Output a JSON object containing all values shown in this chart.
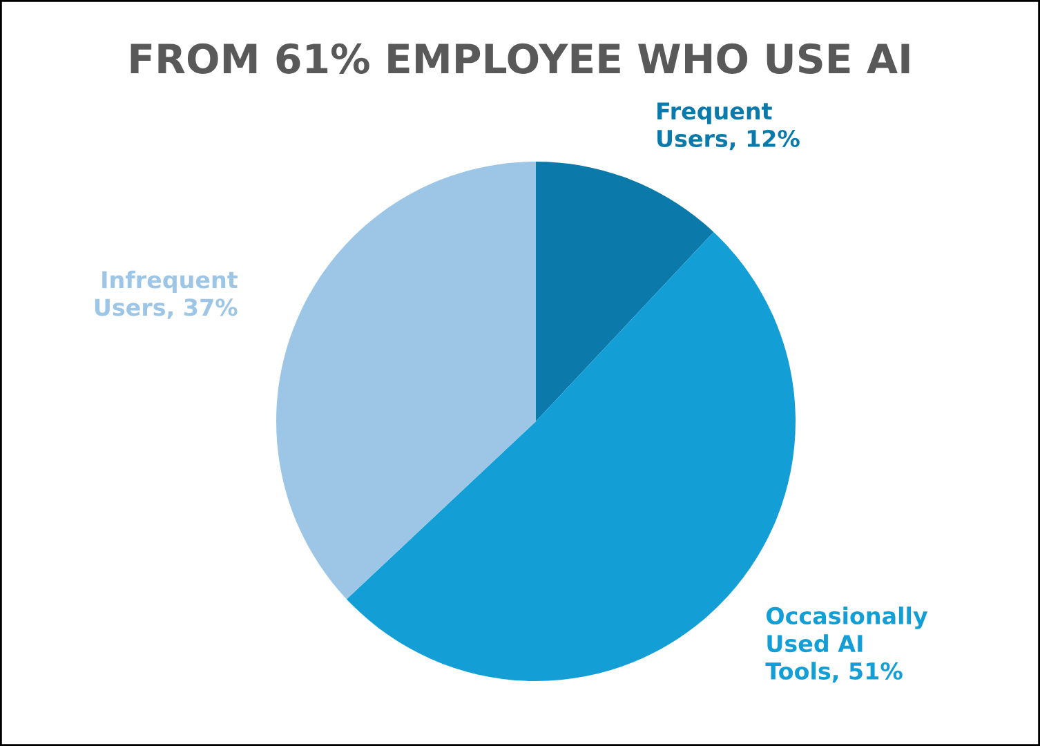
{
  "chart_data": {
    "type": "pie",
    "title": "FROM 61% EMPLOYEE WHO USE AI",
    "categories": [
      "Frequent Users",
      "Occasionally Used AI Tools",
      "Infrequent Users"
    ],
    "values": [
      12,
      51,
      37
    ],
    "colors": [
      "#0b7aab",
      "#139fd6",
      "#9dc6e6"
    ],
    "value_labels": [
      "12%",
      "51%",
      "37%"
    ],
    "legend": false
  }
}
